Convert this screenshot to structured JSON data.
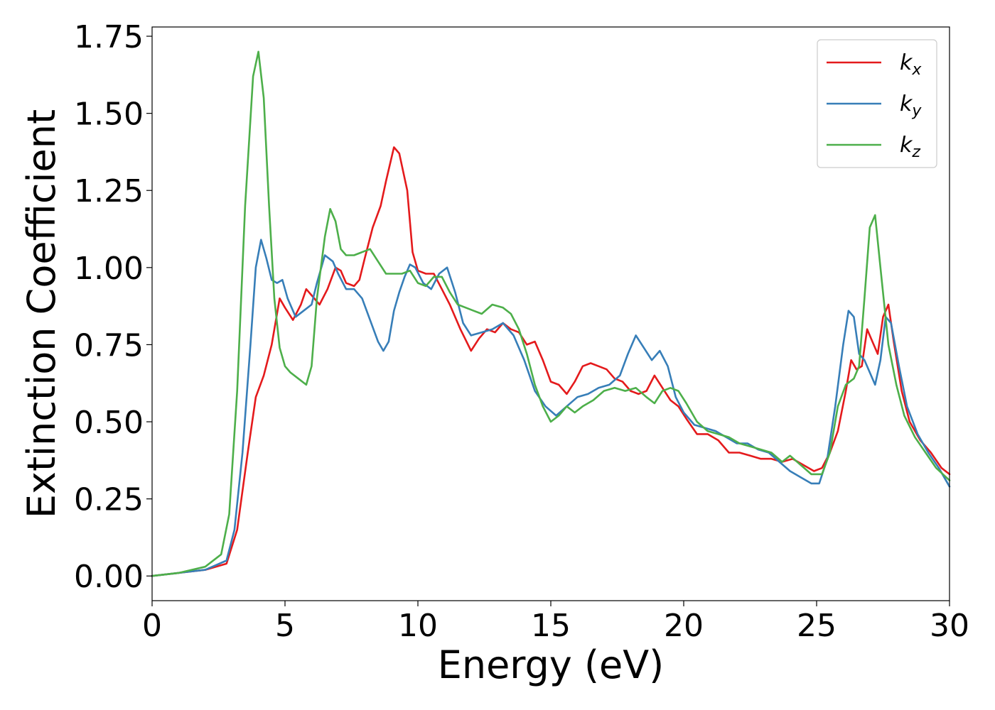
{
  "chart_data": {
    "type": "line",
    "xlabel": "Energy (eV)",
    "ylabel": "Extinction Coefficient",
    "xlim": [
      0,
      30
    ],
    "ylim": [
      -0.08,
      1.78
    ],
    "xticks": [
      0,
      5,
      10,
      15,
      20,
      25,
      30
    ],
    "xtick_labels": [
      "0",
      "5",
      "10",
      "15",
      "20",
      "25",
      "30"
    ],
    "yticks": [
      0.0,
      0.25,
      0.5,
      0.75,
      1.0,
      1.25,
      1.5,
      1.75
    ],
    "ytick_labels": [
      "0.00",
      "0.25",
      "0.50",
      "0.75",
      "1.00",
      "1.25",
      "1.50",
      "1.75"
    ],
    "grid": false,
    "legend_position": "top-right",
    "series": [
      {
        "name": "k_x",
        "label_base": "k",
        "label_sub": "x",
        "color": "#e41a1c",
        "x": [
          0,
          1,
          2,
          2.8,
          3.2,
          3.6,
          3.9,
          4.2,
          4.5,
          4.8,
          5.0,
          5.3,
          5.6,
          5.8,
          6.0,
          6.3,
          6.6,
          6.9,
          7.1,
          7.3,
          7.6,
          7.8,
          8.0,
          8.3,
          8.6,
          8.8,
          9.1,
          9.3,
          9.6,
          9.8,
          10.0,
          10.3,
          10.6,
          10.9,
          11.2,
          11.6,
          12.0,
          12.3,
          12.6,
          12.9,
          13.2,
          13.5,
          13.8,
          14.1,
          14.4,
          14.7,
          15.0,
          15.3,
          15.6,
          15.9,
          16.2,
          16.5,
          16.8,
          17.1,
          17.4,
          17.7,
          18.0,
          18.3,
          18.6,
          18.9,
          19.2,
          19.5,
          19.8,
          20.1,
          20.5,
          20.9,
          21.3,
          21.7,
          22.1,
          22.5,
          22.9,
          23.3,
          23.7,
          24.1,
          24.5,
          24.9,
          25.2,
          25.5,
          25.8,
          26.1,
          26.3,
          26.5,
          26.7,
          26.9,
          27.1,
          27.3,
          27.5,
          27.7,
          27.9,
          28.2,
          28.5,
          28.9,
          29.3,
          29.7,
          30
        ],
        "y": [
          0.0,
          0.01,
          0.02,
          0.04,
          0.15,
          0.4,
          0.58,
          0.65,
          0.75,
          0.9,
          0.87,
          0.83,
          0.88,
          0.93,
          0.91,
          0.88,
          0.93,
          1.0,
          0.99,
          0.95,
          0.94,
          0.96,
          1.03,
          1.13,
          1.2,
          1.28,
          1.39,
          1.37,
          1.25,
          1.05,
          0.99,
          0.98,
          0.98,
          0.93,
          0.88,
          0.8,
          0.73,
          0.77,
          0.8,
          0.79,
          0.82,
          0.8,
          0.79,
          0.75,
          0.76,
          0.7,
          0.63,
          0.62,
          0.59,
          0.63,
          0.68,
          0.69,
          0.68,
          0.67,
          0.64,
          0.63,
          0.6,
          0.59,
          0.6,
          0.65,
          0.61,
          0.57,
          0.55,
          0.51,
          0.46,
          0.46,
          0.44,
          0.4,
          0.4,
          0.39,
          0.38,
          0.38,
          0.37,
          0.38,
          0.36,
          0.34,
          0.35,
          0.4,
          0.47,
          0.6,
          0.7,
          0.67,
          0.68,
          0.8,
          0.76,
          0.72,
          0.84,
          0.88,
          0.76,
          0.6,
          0.5,
          0.44,
          0.4,
          0.35,
          0.33
        ]
      },
      {
        "name": "k_y",
        "label_base": "k",
        "label_sub": "y",
        "color": "#377eb8",
        "x": [
          0,
          1,
          2,
          2.8,
          3.1,
          3.4,
          3.7,
          3.9,
          4.1,
          4.3,
          4.5,
          4.7,
          4.9,
          5.1,
          5.4,
          5.7,
          6.0,
          6.2,
          6.5,
          6.8,
          7.0,
          7.3,
          7.6,
          7.9,
          8.2,
          8.5,
          8.7,
          8.9,
          9.1,
          9.3,
          9.5,
          9.7,
          9.9,
          10.2,
          10.5,
          10.8,
          11.1,
          11.4,
          11.7,
          12.0,
          12.4,
          12.8,
          13.2,
          13.6,
          14.0,
          14.4,
          14.8,
          15.2,
          15.6,
          16.0,
          16.4,
          16.8,
          17.2,
          17.6,
          17.9,
          18.2,
          18.5,
          18.8,
          19.1,
          19.4,
          19.7,
          20.0,
          20.4,
          20.8,
          21.2,
          21.6,
          22.0,
          22.4,
          22.8,
          23.2,
          23.6,
          24.0,
          24.4,
          24.8,
          25.1,
          25.4,
          25.7,
          26.0,
          26.2,
          26.4,
          26.6,
          26.8,
          27.0,
          27.2,
          27.4,
          27.6,
          27.8,
          28.1,
          28.4,
          28.8,
          29.2,
          29.6,
          30
        ],
        "y": [
          0.0,
          0.01,
          0.02,
          0.05,
          0.15,
          0.4,
          0.75,
          1.0,
          1.09,
          1.03,
          0.96,
          0.95,
          0.96,
          0.9,
          0.84,
          0.86,
          0.88,
          0.95,
          1.04,
          1.02,
          0.98,
          0.93,
          0.93,
          0.9,
          0.83,
          0.76,
          0.73,
          0.76,
          0.86,
          0.92,
          0.97,
          1.01,
          1.0,
          0.95,
          0.93,
          0.98,
          1.0,
          0.92,
          0.82,
          0.78,
          0.79,
          0.8,
          0.82,
          0.78,
          0.7,
          0.6,
          0.55,
          0.52,
          0.55,
          0.58,
          0.59,
          0.61,
          0.62,
          0.65,
          0.72,
          0.78,
          0.74,
          0.7,
          0.73,
          0.68,
          0.58,
          0.53,
          0.49,
          0.48,
          0.47,
          0.45,
          0.43,
          0.43,
          0.41,
          0.4,
          0.37,
          0.34,
          0.32,
          0.3,
          0.3,
          0.38,
          0.55,
          0.75,
          0.86,
          0.84,
          0.72,
          0.7,
          0.66,
          0.62,
          0.7,
          0.84,
          0.82,
          0.68,
          0.55,
          0.46,
          0.4,
          0.35,
          0.29
        ]
      },
      {
        "name": "k_z",
        "label_base": "k",
        "label_sub": "z",
        "color": "#4daf4a",
        "x": [
          0,
          1,
          2,
          2.6,
          2.9,
          3.2,
          3.5,
          3.8,
          4.0,
          4.2,
          4.4,
          4.6,
          4.8,
          5.0,
          5.2,
          5.5,
          5.8,
          6.0,
          6.2,
          6.5,
          6.7,
          6.9,
          7.1,
          7.3,
          7.6,
          7.9,
          8.2,
          8.5,
          8.8,
          9.1,
          9.4,
          9.7,
          10.0,
          10.3,
          10.6,
          10.9,
          11.2,
          11.5,
          11.8,
          12.1,
          12.4,
          12.8,
          13.2,
          13.5,
          13.8,
          14.1,
          14.4,
          14.7,
          15.0,
          15.3,
          15.6,
          15.9,
          16.2,
          16.6,
          17.0,
          17.4,
          17.8,
          18.2,
          18.6,
          18.9,
          19.2,
          19.5,
          19.8,
          20.1,
          20.5,
          20.9,
          21.3,
          21.7,
          22.1,
          22.5,
          22.9,
          23.3,
          23.7,
          24.0,
          24.4,
          24.8,
          25.2,
          25.5,
          25.8,
          26.1,
          26.4,
          26.6,
          26.8,
          27.0,
          27.2,
          27.4,
          27.7,
          28.0,
          28.3,
          28.7,
          29.1,
          29.5,
          30
        ],
        "y": [
          0.0,
          0.01,
          0.03,
          0.07,
          0.2,
          0.6,
          1.2,
          1.62,
          1.7,
          1.55,
          1.2,
          0.9,
          0.74,
          0.68,
          0.66,
          0.64,
          0.62,
          0.68,
          0.9,
          1.1,
          1.19,
          1.15,
          1.06,
          1.04,
          1.04,
          1.05,
          1.06,
          1.02,
          0.98,
          0.98,
          0.98,
          0.99,
          0.95,
          0.94,
          0.97,
          0.97,
          0.92,
          0.88,
          0.87,
          0.86,
          0.85,
          0.88,
          0.87,
          0.85,
          0.8,
          0.72,
          0.62,
          0.55,
          0.5,
          0.52,
          0.55,
          0.53,
          0.55,
          0.57,
          0.6,
          0.61,
          0.6,
          0.61,
          0.58,
          0.56,
          0.6,
          0.61,
          0.6,
          0.56,
          0.5,
          0.47,
          0.46,
          0.45,
          0.43,
          0.42,
          0.41,
          0.4,
          0.37,
          0.39,
          0.36,
          0.33,
          0.33,
          0.4,
          0.55,
          0.62,
          0.64,
          0.68,
          0.9,
          1.13,
          1.17,
          1.0,
          0.75,
          0.62,
          0.52,
          0.45,
          0.4,
          0.35,
          0.31
        ]
      }
    ]
  }
}
